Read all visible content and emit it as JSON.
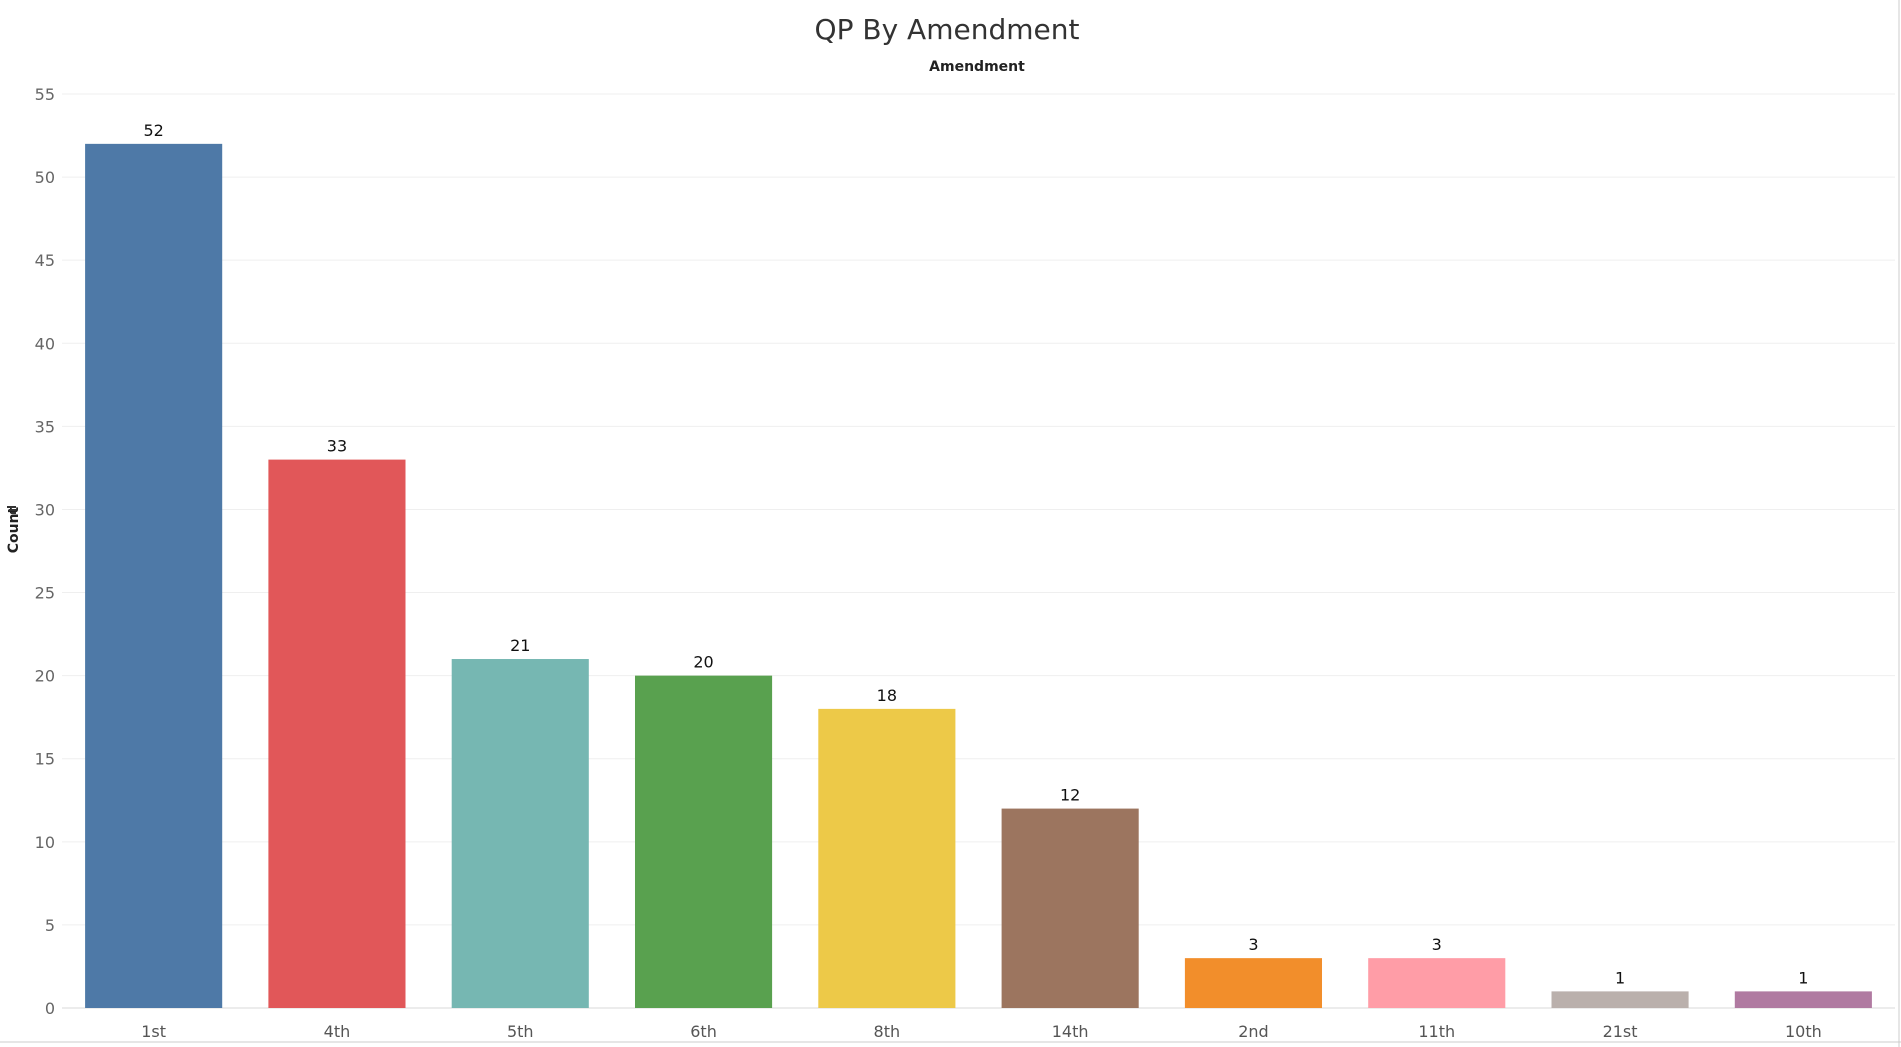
{
  "chart_data": {
    "type": "bar",
    "title": "QP By Amendment",
    "column_header": "Amendment",
    "xlabel": "",
    "ylabel": "Count",
    "ylim": [
      0,
      55
    ],
    "yticks": [
      0,
      5,
      10,
      15,
      20,
      25,
      30,
      35,
      40,
      45,
      50,
      55
    ],
    "grid": true,
    "legend": "none",
    "categories": [
      "1st",
      "4th",
      "5th",
      "6th",
      "8th",
      "14th",
      "2nd",
      "11th",
      "21st",
      "10th"
    ],
    "values": [
      52,
      33,
      21,
      20,
      18,
      12,
      3,
      3,
      1,
      1
    ],
    "colors": [
      "#4e79a7",
      "#e15759",
      "#76b7b2",
      "#59a14f",
      "#edc948",
      "#9c755f",
      "#f28e2b",
      "#ff9da7",
      "#bab0ac",
      "#b07aa1"
    ],
    "data_labels": [
      "52",
      "33",
      "21",
      "20",
      "18",
      "12",
      "3",
      "3",
      "1",
      "1"
    ],
    "sort_icon": "sort-descending-icon"
  }
}
